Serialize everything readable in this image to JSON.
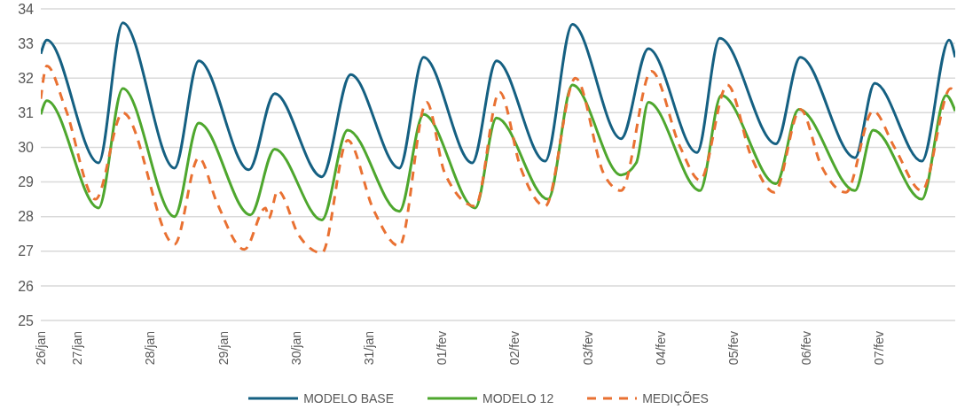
{
  "chart_data": {
    "type": "line",
    "xlim": [
      "--01-26T12:00",
      "--02-08T01:00"
    ],
    "xticks": [
      {
        "value": "--01-26T12:00",
        "label": "26/jan"
      },
      {
        "value": "--01-27",
        "label": "27/jan"
      },
      {
        "value": "--01-28",
        "label": "28/jan"
      },
      {
        "value": "--01-29",
        "label": "29/jan"
      },
      {
        "value": "--01-30",
        "label": "30/jan"
      },
      {
        "value": "--01-31",
        "label": "31/jan"
      },
      {
        "value": "--02-01",
        "label": "01/fev"
      },
      {
        "value": "--02-02",
        "label": "02/fev"
      },
      {
        "value": "--02-03",
        "label": "03/fev"
      },
      {
        "value": "--02-04",
        "label": "04/fev"
      },
      {
        "value": "--02-05",
        "label": "05/fev"
      },
      {
        "value": "--02-06",
        "label": "06/fev"
      },
      {
        "value": "--02-07",
        "label": "07/fev"
      }
    ],
    "ylim": [
      25,
      34
    ],
    "yticks": [
      25,
      26,
      27,
      28,
      29,
      30,
      31,
      32,
      33,
      34
    ],
    "grid": "y",
    "legend": "bottom",
    "marker": "none",
    "series": [
      {
        "name": "MODELO BASE",
        "color": "#156082",
        "line_style": "solid",
        "x": [
          "--01-26T12:00",
          "--01-26T14:00",
          "--01-27T07:00",
          "--01-27T15:00",
          "--01-28T08:00",
          "--01-28T16:00",
          "--01-29T08:30",
          "--01-29T17:00",
          "--01-30T08:30",
          "--01-30T18:00",
          "--01-31T10:00",
          "--01-31T18:00",
          "--02-01T10:00",
          "--02-01T18:00",
          "--02-02T10:00",
          "--02-02T19:00",
          "--02-03T11:00",
          "--02-03T20:00",
          "--02-04T12:00",
          "--02-04T19:30",
          "--02-05T14:00",
          "--02-05T22:00",
          "--02-06T16:00",
          "--02-06T22:30",
          "--02-07T14:00",
          "--02-07T23:00",
          "--02-08T01:00"
        ],
        "values": [
          32.7,
          33.1,
          29.55,
          33.6,
          29.4,
          32.5,
          29.35,
          31.55,
          29.15,
          32.1,
          29.4,
          32.6,
          29.55,
          32.5,
          29.6,
          33.55,
          30.25,
          32.85,
          29.85,
          33.15,
          30.1,
          32.6,
          29.7,
          31.85,
          29.6,
          33.1,
          32.6
        ]
      },
      {
        "name": "MODELO 12",
        "color": "#4ea72e",
        "line_style": "solid",
        "x": [
          "--01-26T12:00",
          "--01-26T14:00",
          "--01-27T07:00",
          "--01-27T15:00",
          "--01-28T08:00",
          "--01-28T16:00",
          "--01-29T09:00",
          "--01-29T17:00",
          "--01-30T08:30",
          "--01-30T17:00",
          "--01-31T10:00",
          "--01-31T18:00",
          "--02-01T11:00",
          "--02-01T18:00",
          "--02-02T11:00",
          "--02-02T19:00",
          "--02-03T11:00",
          "--02-03T16:00",
          "--02-03T20:00",
          "--02-04T13:00",
          "--02-04T20:00",
          "--02-05T14:00",
          "--02-05T21:30",
          "--02-06T16:00",
          "--02-06T22:00",
          "--02-07T14:00",
          "--02-07T22:00",
          "--02-08T01:00"
        ],
        "values": [
          30.95,
          31.35,
          28.25,
          31.7,
          28.0,
          30.7,
          28.05,
          29.95,
          27.9,
          30.5,
          28.15,
          30.95,
          28.25,
          30.85,
          28.5,
          31.8,
          29.2,
          29.55,
          31.3,
          28.75,
          31.5,
          28.95,
          31.1,
          28.75,
          30.5,
          28.5,
          31.5,
          31.05
        ]
      },
      {
        "name": "MEDIÇÕES",
        "color": "#e97132",
        "line_style": "dashed",
        "x": [
          "--01-26T12:00",
          "--01-26T14:00",
          "--01-26T20:00",
          "--01-27T06:00",
          "--01-27T15:00",
          "--01-28T08:00",
          "--01-28T16:00",
          "--01-28T22:00",
          "--01-29T07:00",
          "--01-29T14:00",
          "--01-29T15:00",
          "--01-29T18:00",
          "--01-30T01:00",
          "--01-30T08:30",
          "--01-30T17:00",
          "--01-31T01:30",
          "--01-31T10:00",
          "--01-31T19:00",
          "--02-01T01:00",
          "--02-01T11:00",
          "--02-01T19:00",
          "--02-02T02:00",
          "--02-02T10:00",
          "--02-02T20:00",
          "--02-03T05:30",
          "--02-03T11:00",
          "--02-03T21:00",
          "--02-04T06:30",
          "--02-04T13:00",
          "--02-04T22:00",
          "--02-05T06:00",
          "--02-05T13:30",
          "--02-05T22:00",
          "--02-06T05:00",
          "--02-06T13:00",
          "--02-06T22:00",
          "--02-07T05:00",
          "--02-07T14:00",
          "--02-07T23:30",
          "--02-08T01:00"
        ],
        "values": [
          31.4,
          32.35,
          31.15,
          28.5,
          31.0,
          27.2,
          29.7,
          28.4,
          27.05,
          28.25,
          27.95,
          28.75,
          27.45,
          26.95,
          30.2,
          28.2,
          27.15,
          31.3,
          29.25,
          28.3,
          31.6,
          29.4,
          28.3,
          32.0,
          29.2,
          28.75,
          32.2,
          30.0,
          29.05,
          31.8,
          29.7,
          28.7,
          31.1,
          29.45,
          28.7,
          31.05,
          30.0,
          28.75,
          31.7,
          31.55
        ]
      }
    ]
  }
}
